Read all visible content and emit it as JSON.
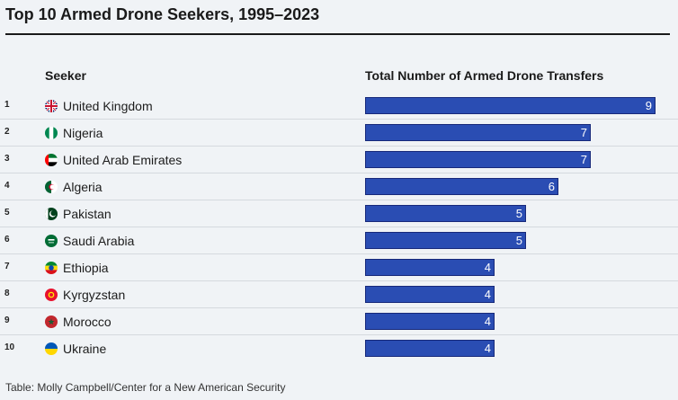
{
  "title": "Top 10 Armed Drone Seekers, 1995–2023",
  "columns": {
    "seeker": "Seeker",
    "total": "Total Number of Armed Drone Transfers"
  },
  "source": "Table: Molly Campbell/Center for a New American Security",
  "chart_data": {
    "type": "table",
    "max_value": 9,
    "rows": [
      {
        "rank": "1",
        "country": "United Kingdom",
        "value": 9,
        "flag": "uk-flag-icon"
      },
      {
        "rank": "2",
        "country": "Nigeria",
        "value": 7,
        "flag": "nigeria-flag-icon"
      },
      {
        "rank": "3",
        "country": "United Arab Emirates",
        "value": 7,
        "flag": "uae-flag-icon"
      },
      {
        "rank": "4",
        "country": "Algeria",
        "value": 6,
        "flag": "algeria-flag-icon"
      },
      {
        "rank": "5",
        "country": "Pakistan",
        "value": 5,
        "flag": "pakistan-flag-icon"
      },
      {
        "rank": "6",
        "country": "Saudi Arabia",
        "value": 5,
        "flag": "saudi-arabia-flag-icon"
      },
      {
        "rank": "7",
        "country": "Ethiopia",
        "value": 4,
        "flag": "ethiopia-flag-icon"
      },
      {
        "rank": "8",
        "country": "Kyrgyzstan",
        "value": 4,
        "flag": "kyrgyzstan-flag-icon"
      },
      {
        "rank": "9",
        "country": "Morocco",
        "value": 4,
        "flag": "morocco-flag-icon"
      },
      {
        "rank": "10",
        "country": "Ukraine",
        "value": 4,
        "flag": "ukraine-flag-icon"
      }
    ]
  }
}
